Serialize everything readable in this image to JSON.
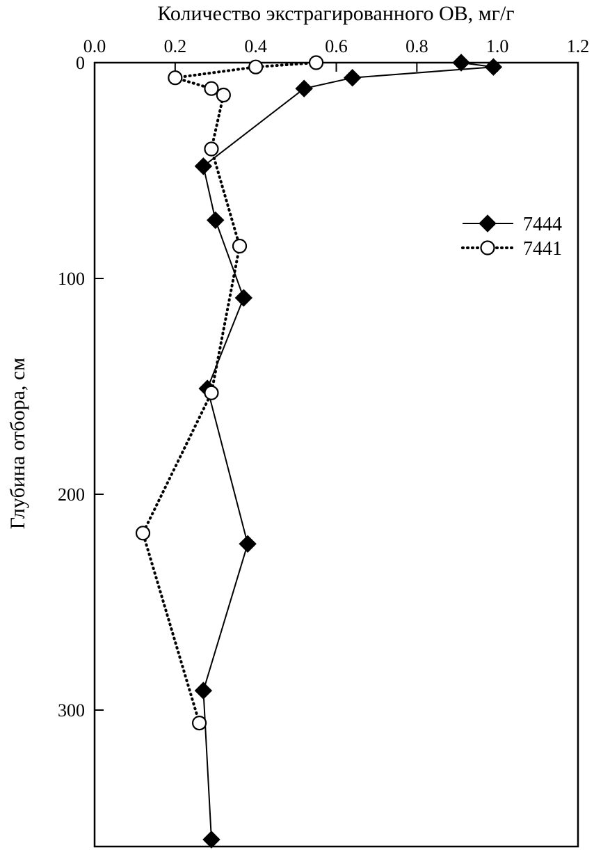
{
  "chart_data": {
    "type": "line",
    "title": "",
    "xlabel": "Количество экстрагированного ОВ, мг/г",
    "ylabel": "Глубина отбора, см",
    "xlim": [
      0.0,
      1.2
    ],
    "ylim": [
      0,
      365
    ],
    "y_inverted": true,
    "x_axis_position": "top",
    "x_ticks": [
      "0.0",
      "0.2",
      "0.4",
      "0.6",
      "0.8",
      "1.0",
      "1.2"
    ],
    "y_ticks": [
      "0",
      "100",
      "200",
      "300"
    ],
    "grid": false,
    "legend": "right-middle",
    "series": [
      {
        "name": "7444",
        "marker": "filled-diamond",
        "line": "solid",
        "color": "#000000",
        "points": [
          {
            "x": 0.91,
            "y": 0
          },
          {
            "x": 0.99,
            "y": 2
          },
          {
            "x": 0.64,
            "y": 7
          },
          {
            "x": 0.52,
            "y": 12
          },
          {
            "x": 0.27,
            "y": 48
          },
          {
            "x": 0.3,
            "y": 73
          },
          {
            "x": 0.37,
            "y": 109
          },
          {
            "x": 0.28,
            "y": 151
          },
          {
            "x": 0.38,
            "y": 223
          },
          {
            "x": 0.27,
            "y": 291
          },
          {
            "x": 0.29,
            "y": 360
          }
        ]
      },
      {
        "name": "7441",
        "marker": "open-circle",
        "line": "dotted",
        "color": "#000000",
        "points": [
          {
            "x": 0.55,
            "y": 0
          },
          {
            "x": 0.4,
            "y": 2
          },
          {
            "x": 0.2,
            "y": 7
          },
          {
            "x": 0.29,
            "y": 12
          },
          {
            "x": 0.32,
            "y": 15
          },
          {
            "x": 0.29,
            "y": 40
          },
          {
            "x": 0.36,
            "y": 85
          },
          {
            "x": 0.29,
            "y": 153
          },
          {
            "x": 0.12,
            "y": 218
          },
          {
            "x": 0.26,
            "y": 306
          }
        ]
      }
    ]
  }
}
